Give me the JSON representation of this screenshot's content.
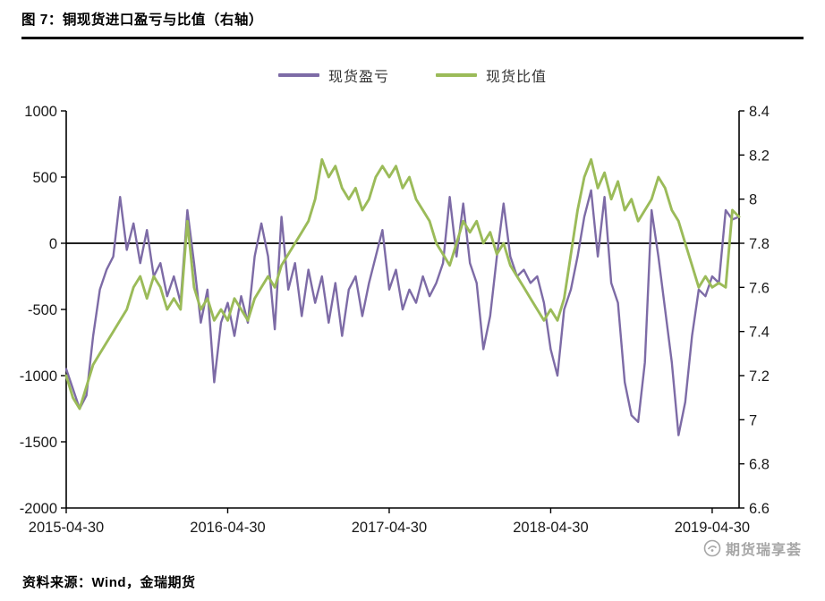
{
  "title": "图 7：铜现货进口盈亏与比值（右轴）",
  "footer": {
    "source_label": "资料来源：Wind，金瑞期货"
  },
  "watermark": {
    "text": "期货瑞享荟",
    "logo": "circular-seal-logo"
  },
  "chart_data": {
    "type": "line",
    "title": "铜现货进口盈亏与比值（右轴）",
    "grid": false,
    "zero_line": true,
    "legend_position": "top",
    "x_ticks": {
      "labels": [
        "2015-04-30",
        "2016-04-30",
        "2017-04-30",
        "2018-04-30",
        "2019-04-30"
      ],
      "fractions": [
        0,
        0.24,
        0.48,
        0.72,
        0.96
      ]
    },
    "left_axis": {
      "min": -2000,
      "max": 1000,
      "step": 500,
      "ticks": [
        "1000",
        "500",
        "0",
        "-500",
        "-1000",
        "-1500",
        "-2000"
      ]
    },
    "right_axis": {
      "min": 6.6,
      "max": 8.4,
      "step": 0.2,
      "ticks": [
        "8.4",
        "8.2",
        "8",
        "7.8",
        "7.6",
        "7.4",
        "7.2",
        "7",
        "6.8",
        "6.6"
      ]
    },
    "series": [
      {
        "name": "现货盈亏",
        "axis": "left",
        "color": "#7D6BA6",
        "values": [
          -950,
          -1100,
          -1250,
          -1150,
          -700,
          -350,
          -200,
          -100,
          350,
          -50,
          150,
          -150,
          100,
          -250,
          -150,
          -400,
          -250,
          -450,
          250,
          -150,
          -600,
          -350,
          -1050,
          -600,
          -450,
          -700,
          -400,
          -600,
          -100,
          150,
          -100,
          -650,
          200,
          -350,
          -150,
          -550,
          -200,
          -450,
          -250,
          -600,
          -300,
          -700,
          -350,
          -250,
          -550,
          -300,
          -100,
          100,
          -350,
          -200,
          -500,
          -350,
          -450,
          -250,
          -400,
          -300,
          -150,
          350,
          -100,
          300,
          -150,
          -300,
          -800,
          -550,
          -100,
          300,
          -100,
          -250,
          -200,
          -300,
          -250,
          -450,
          -800,
          -1000,
          -500,
          -350,
          -100,
          200,
          400,
          -100,
          350,
          -300,
          -450,
          -1050,
          -1300,
          -1350,
          -900,
          250,
          -100,
          -500,
          -900,
          -1450,
          -1200,
          -700,
          -350,
          -400,
          -250,
          -300,
          250,
          180,
          200
        ]
      },
      {
        "name": "现货比值",
        "axis": "right",
        "color": "#9BBB59",
        "values": [
          7.2,
          7.1,
          7.05,
          7.15,
          7.25,
          7.3,
          7.35,
          7.4,
          7.45,
          7.5,
          7.6,
          7.65,
          7.55,
          7.65,
          7.6,
          7.5,
          7.55,
          7.5,
          7.9,
          7.6,
          7.5,
          7.55,
          7.45,
          7.5,
          7.45,
          7.55,
          7.5,
          7.45,
          7.55,
          7.6,
          7.65,
          7.6,
          7.7,
          7.75,
          7.8,
          7.85,
          7.9,
          8.0,
          8.18,
          8.1,
          8.15,
          8.05,
          8.0,
          8.05,
          7.95,
          8.0,
          8.1,
          8.15,
          8.1,
          8.15,
          8.05,
          8.1,
          8.0,
          7.95,
          7.9,
          7.8,
          7.75,
          7.7,
          7.8,
          7.9,
          7.85,
          7.9,
          7.8,
          7.85,
          7.75,
          7.8,
          7.7,
          7.65,
          7.6,
          7.55,
          7.5,
          7.45,
          7.5,
          7.45,
          7.55,
          7.75,
          7.95,
          8.1,
          8.18,
          8.05,
          8.12,
          8.0,
          8.08,
          7.95,
          8.0,
          7.9,
          7.95,
          8.0,
          8.1,
          8.05,
          7.95,
          7.9,
          7.8,
          7.7,
          7.6,
          7.65,
          7.6,
          7.62,
          7.6,
          7.95,
          7.92
        ]
      }
    ]
  }
}
